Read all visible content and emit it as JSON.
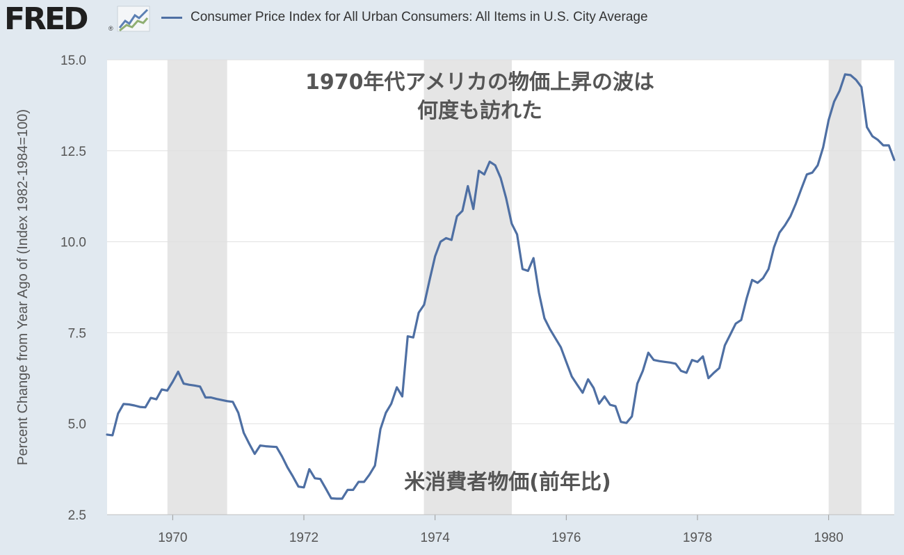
{
  "header": {
    "logo_text": "FRED",
    "logo_reg": "®",
    "legend_label": "Consumer Price Index for All Urban Consumers: All Items in U.S. City Average"
  },
  "colors": {
    "series": "#4e6fa3",
    "recession": "#e5e5e5",
    "grid": "#e0e0e0",
    "background": "#e1e9f0",
    "plot": "#ffffff"
  },
  "chart_data": {
    "type": "line",
    "title": "",
    "ylabel": "Percent Change from Year Ago of (Index 1982-1984=100)",
    "xlabel": "",
    "xlim": [
      1969.0,
      1981.0
    ],
    "ylim": [
      2.5,
      15.0
    ],
    "yticks": [
      "2.5",
      "5.0",
      "7.5",
      "10.0",
      "12.5",
      "15.0"
    ],
    "xticks": [
      "1970",
      "1972",
      "1974",
      "1976",
      "1978",
      "1980"
    ],
    "grid": true,
    "legend": "top",
    "recessions": [
      [
        1969.92,
        1970.83
      ],
      [
        1973.83,
        1975.17
      ],
      [
        1980.0,
        1980.5
      ]
    ],
    "annotations": {
      "main": [
        "1970年代アメリカの物価上昇の波は",
        "何度も訪れた"
      ],
      "sub": "米消費者物価(前年比)"
    },
    "series": [
      {
        "name": "Consumer Price Index for All Urban Consumers: All Items in U.S. City Average",
        "x": [
          1969.0,
          1969.083,
          1969.167,
          1969.25,
          1969.333,
          1969.417,
          1969.5,
          1969.583,
          1969.667,
          1969.75,
          1969.833,
          1969.917,
          1970.0,
          1970.083,
          1970.167,
          1970.25,
          1970.333,
          1970.417,
          1970.5,
          1970.583,
          1970.667,
          1970.75,
          1970.833,
          1970.917,
          1971.0,
          1971.083,
          1971.167,
          1971.25,
          1971.333,
          1971.417,
          1971.5,
          1971.583,
          1971.667,
          1971.75,
          1971.833,
          1971.917,
          1972.0,
          1972.083,
          1972.167,
          1972.25,
          1972.333,
          1972.417,
          1972.5,
          1972.583,
          1972.667,
          1972.75,
          1972.833,
          1972.917,
          1973.0,
          1973.083,
          1973.167,
          1973.25,
          1973.333,
          1973.417,
          1973.5,
          1973.583,
          1973.667,
          1973.75,
          1973.833,
          1973.917,
          1974.0,
          1974.083,
          1974.167,
          1974.25,
          1974.333,
          1974.417,
          1974.5,
          1974.583,
          1974.667,
          1974.75,
          1974.833,
          1974.917,
          1975.0,
          1975.083,
          1975.167,
          1975.25,
          1975.333,
          1975.417,
          1975.5,
          1975.583,
          1975.667,
          1975.75,
          1975.833,
          1975.917,
          1976.0,
          1976.083,
          1976.167,
          1976.25,
          1976.333,
          1976.417,
          1976.5,
          1976.583,
          1976.667,
          1976.75,
          1976.833,
          1976.917,
          1977.0,
          1977.083,
          1977.167,
          1977.25,
          1977.333,
          1977.417,
          1977.5,
          1977.583,
          1977.667,
          1977.75,
          1977.833,
          1977.917,
          1978.0,
          1978.083,
          1978.167,
          1978.25,
          1978.333,
          1978.417,
          1978.5,
          1978.583,
          1978.667,
          1978.75,
          1978.833,
          1978.917,
          1979.0,
          1979.083,
          1979.167,
          1979.25,
          1979.333,
          1979.417,
          1979.5,
          1979.583,
          1979.667,
          1979.75,
          1979.833,
          1979.917,
          1980.0,
          1980.083,
          1980.167,
          1980.25,
          1980.333,
          1980.417,
          1980.5,
          1980.583,
          1980.667,
          1980.75,
          1980.833,
          1980.917,
          1981.0
        ],
        "y": [
          4.7,
          4.68,
          5.28,
          5.54,
          5.53,
          5.5,
          5.46,
          5.45,
          5.71,
          5.67,
          5.94,
          5.91,
          6.15,
          6.43,
          6.1,
          6.07,
          6.05,
          6.02,
          5.72,
          5.72,
          5.68,
          5.65,
          5.62,
          5.6,
          5.3,
          4.75,
          4.45,
          4.17,
          4.4,
          4.38,
          4.37,
          4.36,
          4.1,
          3.8,
          3.55,
          3.27,
          3.25,
          3.75,
          3.5,
          3.48,
          3.22,
          2.95,
          2.94,
          2.94,
          3.18,
          3.18,
          3.4,
          3.4,
          3.6,
          3.85,
          4.85,
          5.3,
          5.55,
          6.0,
          5.75,
          7.4,
          7.37,
          8.05,
          8.27,
          8.95,
          9.6,
          10.0,
          10.1,
          10.05,
          10.7,
          10.85,
          11.53,
          10.9,
          11.95,
          11.85,
          12.2,
          12.1,
          11.75,
          11.2,
          10.5,
          10.2,
          9.25,
          9.2,
          9.55,
          8.6,
          7.9,
          7.6,
          7.35,
          7.1,
          6.7,
          6.3,
          6.07,
          5.85,
          6.22,
          5.98,
          5.55,
          5.75,
          5.52,
          5.48,
          5.05,
          5.02,
          5.2,
          6.1,
          6.45,
          6.95,
          6.75,
          6.72,
          6.7,
          6.68,
          6.65,
          6.45,
          6.4,
          6.75,
          6.7,
          6.85,
          6.25,
          6.4,
          6.53,
          7.15,
          7.45,
          7.75,
          7.85,
          8.45,
          8.95,
          8.87,
          9.0,
          9.25,
          9.85,
          10.25,
          10.45,
          10.7,
          11.05,
          11.45,
          11.85,
          11.9,
          12.1,
          12.6,
          13.35,
          13.85,
          14.15,
          14.6,
          14.58,
          14.45,
          14.25,
          13.15,
          12.9,
          12.8,
          12.65,
          12.65,
          12.25
        ]
      }
    ]
  }
}
